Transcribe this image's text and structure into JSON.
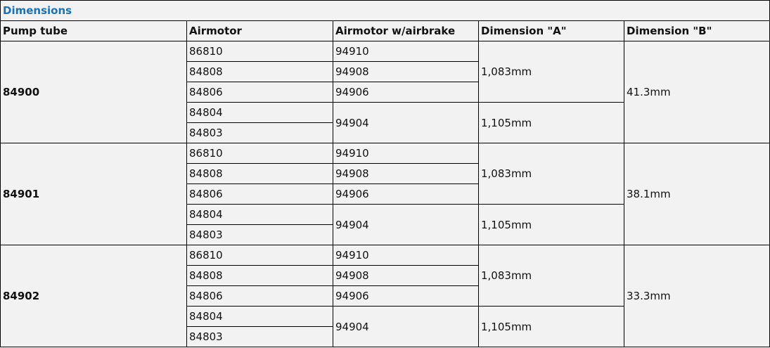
{
  "title": "Dimensions",
  "headers": [
    "Pump tube",
    "Airmotor",
    "Airmotor w/airbrake",
    "Dimension \"A\"",
    "Dimension \"B\""
  ],
  "groups": [
    {
      "pump_tube": "84900",
      "dimension_b": "41.3mm",
      "subgroups": [
        {
          "dimension_a": "1,083mm",
          "airmotors": [
            "86810",
            "84808",
            "84806"
          ],
          "airbrakes": [
            "94910",
            "94908",
            "94906"
          ]
        },
        {
          "dimension_a": "1,105mm",
          "airmotors": [
            "84804",
            "84803"
          ],
          "airbrakes": [
            "94904"
          ]
        }
      ]
    },
    {
      "pump_tube": "84901",
      "dimension_b": "38.1mm",
      "subgroups": [
        {
          "dimension_a": "1,083mm",
          "airmotors": [
            "86810",
            "84808",
            "84806"
          ],
          "airbrakes": [
            "94910",
            "94908",
            "94906"
          ]
        },
        {
          "dimension_a": "1,105mm",
          "airmotors": [
            "84804",
            "84803"
          ],
          "airbrakes": [
            "94904"
          ]
        }
      ]
    },
    {
      "pump_tube": "84902",
      "dimension_b": "33.3mm",
      "subgroups": [
        {
          "dimension_a": "1,083mm",
          "airmotors": [
            "86810",
            "84808",
            "84806"
          ],
          "airbrakes": [
            "94910",
            "94908",
            "94906"
          ]
        },
        {
          "dimension_a": "1,105mm",
          "airmotors": [
            "84804",
            "84803"
          ],
          "airbrakes": [
            "94904"
          ]
        }
      ]
    }
  ]
}
